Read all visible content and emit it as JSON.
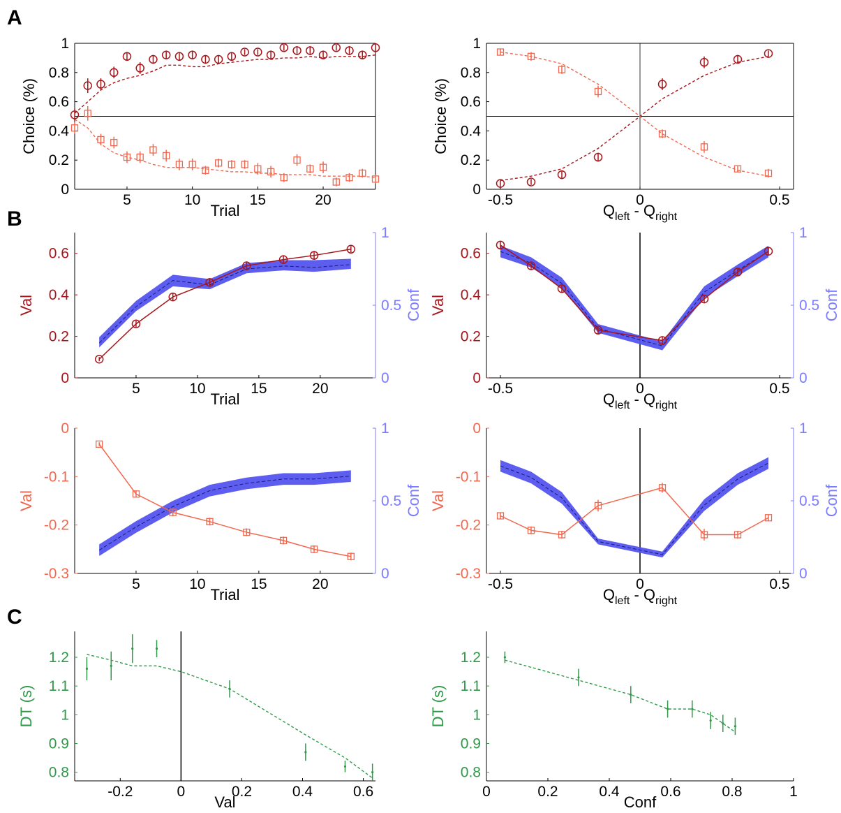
{
  "panel_labels": [
    "A",
    "B",
    "C"
  ],
  "colors": {
    "dark_red": "#a8151b",
    "orange": "#f0684f",
    "blue": "#5a5af0",
    "blue_band": "#5454ee",
    "light_blue_text": "#7b7bff",
    "green": "#2e9a48",
    "axis": "#000000"
  },
  "chart_data": [
    {
      "id": "A-left",
      "panel": "A",
      "type": "scatter",
      "xlabel": "Trial",
      "ylabel": "Choice (%)",
      "xlim": [
        1,
        24
      ],
      "ylim": [
        0,
        1
      ],
      "xticks": [
        "5",
        "10",
        "15",
        "20"
      ],
      "yticks": [
        "0",
        "0.2",
        "0.4",
        "0.6",
        "0.8",
        "1"
      ],
      "ref_lines": [
        {
          "axis": "y",
          "value": 0.5
        }
      ],
      "series": [
        {
          "marker": "circle",
          "color": "dark_red",
          "x": [
            1,
            2,
            3,
            4,
            5,
            6,
            7,
            8,
            9,
            10,
            11,
            12,
            13,
            14,
            15,
            16,
            17,
            18,
            19,
            20,
            21,
            22,
            23,
            24
          ],
          "y": [
            0.51,
            0.71,
            0.72,
            0.8,
            0.91,
            0.83,
            0.89,
            0.92,
            0.91,
            0.92,
            0.89,
            0.89,
            0.91,
            0.94,
            0.94,
            0.92,
            0.97,
            0.95,
            0.95,
            0.92,
            0.97,
            0.95,
            0.92,
            0.97
          ],
          "err": [
            0.04,
            0.05,
            0.04,
            0.04,
            0.03,
            0.04,
            0.03,
            0.03,
            0.03,
            0.03,
            0.03,
            0.03,
            0.03,
            0.02,
            0.02,
            0.03,
            0.02,
            0.03,
            0.03,
            0.03,
            0.02,
            0.03,
            0.03,
            0.02
          ]
        },
        {
          "marker": "square",
          "color": "orange",
          "x": [
            1,
            2,
            3,
            4,
            5,
            6,
            7,
            8,
            9,
            10,
            11,
            12,
            13,
            14,
            15,
            16,
            17,
            18,
            19,
            20,
            21,
            22,
            23,
            24
          ],
          "y": [
            0.42,
            0.52,
            0.34,
            0.32,
            0.22,
            0.22,
            0.27,
            0.23,
            0.17,
            0.17,
            0.13,
            0.18,
            0.17,
            0.17,
            0.14,
            0.12,
            0.08,
            0.2,
            0.14,
            0.15,
            0.05,
            0.08,
            0.11,
            0.07
          ],
          "err": [
            0.04,
            0.05,
            0.04,
            0.04,
            0.04,
            0.04,
            0.04,
            0.04,
            0.04,
            0.04,
            0.03,
            0.03,
            0.03,
            0.03,
            0.04,
            0.04,
            0.03,
            0.04,
            0.03,
            0.04,
            0.03,
            0.03,
            0.03,
            0.03
          ]
        }
      ],
      "lines": [
        {
          "color": "dark_red",
          "x": [
            1,
            2,
            3,
            4,
            5,
            6,
            7,
            8,
            9,
            10,
            11,
            12,
            13,
            14,
            15,
            16,
            17,
            18,
            19,
            20,
            21,
            22,
            23,
            24
          ],
          "y": [
            0.52,
            0.6,
            0.68,
            0.73,
            0.76,
            0.78,
            0.81,
            0.85,
            0.85,
            0.84,
            0.84,
            0.86,
            0.87,
            0.88,
            0.89,
            0.89,
            0.9,
            0.9,
            0.91,
            0.9,
            0.91,
            0.91,
            0.91,
            0.92
          ]
        },
        {
          "color": "orange",
          "x": [
            1,
            2,
            3,
            4,
            5,
            6,
            7,
            8,
            9,
            10,
            11,
            12,
            13,
            14,
            15,
            16,
            17,
            18,
            19,
            20,
            21,
            22,
            23,
            24
          ],
          "y": [
            0.48,
            0.42,
            0.31,
            0.25,
            0.22,
            0.2,
            0.17,
            0.15,
            0.15,
            0.15,
            0.14,
            0.13,
            0.12,
            0.12,
            0.11,
            0.11,
            0.1,
            0.1,
            0.1,
            0.09,
            0.09,
            0.09,
            0.09,
            0.08
          ]
        }
      ]
    },
    {
      "id": "A-right",
      "panel": "A",
      "type": "scatter",
      "xlabel": "Q",
      "xlabel_sub1": "left",
      "xlabel_mid": " - Q",
      "xlabel_sub2": "right",
      "ylabel": "Choice (%)",
      "xlim": [
        -0.55,
        0.55
      ],
      "ylim": [
        0,
        1
      ],
      "xticks": [
        "-0.5",
        "0",
        "0.5"
      ],
      "yticks": [
        "0",
        "0.2",
        "0.4",
        "0.6",
        "0.8",
        "1"
      ],
      "ref_lines": [
        {
          "axis": "y",
          "value": 0.5
        },
        {
          "axis": "x",
          "value": 0
        }
      ],
      "series": [
        {
          "marker": "circle",
          "color": "dark_red",
          "x": [
            -0.5,
            -0.39,
            -0.28,
            -0.15,
            0.08,
            0.23,
            0.35,
            0.46
          ],
          "y": [
            0.04,
            0.05,
            0.1,
            0.22,
            0.72,
            0.87,
            0.89,
            0.93
          ],
          "err": [
            0.02,
            0.02,
            0.03,
            0.03,
            0.04,
            0.04,
            0.03,
            0.02
          ]
        },
        {
          "marker": "square",
          "color": "orange",
          "x": [
            -0.5,
            -0.39,
            -0.28,
            -0.15,
            0.08,
            0.23,
            0.35,
            0.46
          ],
          "y": [
            0.94,
            0.91,
            0.82,
            0.67,
            0.38,
            0.29,
            0.14,
            0.11
          ],
          "err": [
            0.02,
            0.03,
            0.03,
            0.04,
            0.03,
            0.04,
            0.02,
            0.03
          ]
        }
      ],
      "lines": [
        {
          "color": "dark_red",
          "x": [
            -0.5,
            -0.39,
            -0.28,
            -0.15,
            0,
            0.08,
            0.23,
            0.35,
            0.46
          ],
          "y": [
            0.06,
            0.09,
            0.14,
            0.28,
            0.5,
            0.62,
            0.78,
            0.87,
            0.91
          ]
        },
        {
          "color": "orange",
          "x": [
            -0.5,
            -0.39,
            -0.28,
            -0.15,
            0,
            0.08,
            0.23,
            0.35,
            0.46
          ],
          "y": [
            0.94,
            0.91,
            0.86,
            0.72,
            0.5,
            0.38,
            0.22,
            0.13,
            0.09
          ]
        }
      ]
    },
    {
      "id": "B-top-left",
      "panel": "B",
      "type": "line",
      "xlabel": "Trial",
      "ylabel": "Val",
      "ylabel_right": "Conf",
      "xlim": [
        0,
        24.5
      ],
      "ylim": [
        0,
        0.7
      ],
      "ylim_right": [
        0,
        1
      ],
      "xticks": [
        "5",
        "10",
        "15",
        "20"
      ],
      "yticks": [
        "0",
        "0.2",
        "0.4",
        "0.6"
      ],
      "yticks_right": [
        "0",
        "0.5",
        "1"
      ],
      "series": [
        {
          "name": "",
          "marker": "circle",
          "color": "dark_red",
          "x": [
            2,
            5,
            8,
            11,
            14,
            17,
            19.5,
            22.5
          ],
          "y": [
            0.09,
            0.26,
            0.39,
            0.46,
            0.54,
            0.57,
            0.59,
            0.62
          ],
          "err": [
            0.01,
            0.015,
            0.02,
            0.02,
            0.02,
            0.02,
            0.02,
            0.015
          ]
        }
      ],
      "band": {
        "color": "blue_band",
        "x": [
          2,
          5,
          8,
          11,
          14,
          17,
          19.5,
          22.5
        ],
        "mean": [
          0.24,
          0.49,
          0.67,
          0.64,
          0.75,
          0.77,
          0.76,
          0.78
        ],
        "lo": [
          0.21,
          0.46,
          0.63,
          0.61,
          0.72,
          0.74,
          0.73,
          0.75
        ],
        "hi": [
          0.28,
          0.53,
          0.71,
          0.68,
          0.79,
          0.81,
          0.81,
          0.82
        ]
      }
    },
    {
      "id": "B-top-right",
      "panel": "B",
      "type": "line",
      "xlabel": "Q",
      "xlabel_sub1": "left",
      "xlabel_mid": " - Q",
      "xlabel_sub2": "right",
      "ylabel": "Val",
      "ylabel_right": "Conf",
      "xlim": [
        -0.55,
        0.55
      ],
      "ylim": [
        0,
        0.7
      ],
      "ylim_right": [
        0,
        1
      ],
      "xticks": [
        "-0.5",
        "0",
        "0.5"
      ],
      "yticks": [
        "0",
        "0.2",
        "0.4",
        "0.6"
      ],
      "yticks_right": [
        "0",
        "0.5",
        "1"
      ],
      "ref_lines": [
        {
          "axis": "x",
          "value": 0
        }
      ],
      "series": [
        {
          "marker": "circle",
          "color": "dark_red",
          "x": [
            -0.5,
            -0.39,
            -0.28,
            -0.15,
            0.08,
            0.23,
            0.35,
            0.46
          ],
          "y": [
            0.64,
            0.54,
            0.43,
            0.23,
            0.18,
            0.38,
            0.51,
            0.61
          ],
          "err": [
            0.02,
            0.02,
            0.02,
            0.02,
            0.02,
            0.02,
            0.02,
            0.02
          ]
        }
      ],
      "band": {
        "color": "blue_band",
        "x": [
          -0.5,
          -0.39,
          -0.28,
          -0.15,
          0.08,
          0.23,
          0.35,
          0.46
        ],
        "mean": [
          0.87,
          0.79,
          0.65,
          0.34,
          0.22,
          0.59,
          0.74,
          0.87
        ],
        "lo": [
          0.83,
          0.76,
          0.62,
          0.31,
          0.19,
          0.55,
          0.7,
          0.83
        ],
        "hi": [
          0.91,
          0.83,
          0.69,
          0.37,
          0.25,
          0.63,
          0.78,
          0.91
        ]
      }
    },
    {
      "id": "B-bottom-left",
      "panel": "B",
      "type": "line",
      "xlabel": "Trial",
      "ylabel": "Val",
      "ylabel_right": "Conf",
      "xlim": [
        0,
        24.5
      ],
      "ylim": [
        -0.3,
        0
      ],
      "ylim_right": [
        0,
        1
      ],
      "xticks": [
        "5",
        "10",
        "15",
        "20"
      ],
      "yticks": [
        "-0.3",
        "-0.2",
        "-0.1",
        "0"
      ],
      "yticks_right": [
        "0",
        "0.5",
        "1"
      ],
      "series": [
        {
          "marker": "square",
          "color": "orange",
          "x": [
            2,
            5,
            8,
            11,
            14,
            17,
            19.5,
            22.5
          ],
          "y": [
            -0.033,
            -0.136,
            -0.174,
            -0.193,
            -0.215,
            -0.232,
            -0.25,
            -0.265
          ],
          "err": [
            0.004,
            0.007,
            0.008,
            0.008,
            0.008,
            0.008,
            0.008,
            0.008
          ]
        }
      ],
      "band": {
        "color": "blue_band",
        "x": [
          2,
          5,
          8,
          11,
          14,
          17,
          19.5,
          22.5
        ],
        "mean": [
          0.16,
          0.32,
          0.46,
          0.57,
          0.62,
          0.65,
          0.65,
          0.67
        ],
        "lo": [
          0.12,
          0.28,
          0.42,
          0.53,
          0.58,
          0.61,
          0.61,
          0.63
        ],
        "hi": [
          0.2,
          0.36,
          0.5,
          0.61,
          0.66,
          0.69,
          0.69,
          0.71
        ]
      }
    },
    {
      "id": "B-bottom-right",
      "panel": "B",
      "type": "line",
      "xlabel": "Q",
      "xlabel_sub1": "left",
      "xlabel_mid": " - Q",
      "xlabel_sub2": "right",
      "ylabel": "Val",
      "ylabel_right": "Conf",
      "xlim": [
        -0.55,
        0.55
      ],
      "ylim": [
        -0.3,
        0
      ],
      "ylim_right": [
        0,
        1
      ],
      "xticks": [
        "-0.5",
        "0",
        "0.5"
      ],
      "yticks": [
        "-0.3",
        "-0.2",
        "-0.1",
        "0"
      ],
      "yticks_right": [
        "0",
        "0.5",
        "1"
      ],
      "ref_lines": [
        {
          "axis": "x",
          "value": 0
        }
      ],
      "series": [
        {
          "marker": "square",
          "color": "orange",
          "x": [
            -0.5,
            -0.39,
            -0.28,
            -0.15,
            0.08,
            0.23,
            0.35,
            0.46
          ],
          "y": [
            -0.181,
            -0.211,
            -0.22,
            -0.16,
            -0.123,
            -0.22,
            -0.22,
            -0.185
          ],
          "err": [
            0.007,
            0.008,
            0.008,
            0.012,
            0.01,
            0.012,
            0.008,
            0.007
          ]
        }
      ],
      "band": {
        "color": "blue_band",
        "x": [
          -0.5,
          -0.39,
          -0.28,
          -0.15,
          0.08,
          0.23,
          0.35,
          0.46
        ],
        "mean": [
          0.74,
          0.66,
          0.52,
          0.22,
          0.13,
          0.47,
          0.65,
          0.76
        ],
        "lo": [
          0.7,
          0.62,
          0.48,
          0.2,
          0.11,
          0.43,
          0.61,
          0.72
        ],
        "hi": [
          0.78,
          0.7,
          0.56,
          0.24,
          0.15,
          0.51,
          0.69,
          0.8
        ]
      }
    },
    {
      "id": "C-left",
      "panel": "C",
      "type": "scatter",
      "xlabel": "Val",
      "ylabel": "DT (s)",
      "xlim": [
        -0.35,
        0.64
      ],
      "ylim": [
        0.77,
        1.29
      ],
      "xticks": [
        "-0.2",
        "0",
        "0.2",
        "0.4",
        "0.6"
      ],
      "yticks": [
        "0.8",
        "0.9",
        "1",
        "1.1",
        "1.2"
      ],
      "ref_lines": [
        {
          "axis": "x",
          "value": 0
        }
      ],
      "series": [
        {
          "marker": "dot",
          "color": "green",
          "x": [
            -0.31,
            -0.23,
            -0.16,
            -0.08,
            0.16,
            0.41,
            0.54,
            0.63
          ],
          "y": [
            1.16,
            1.17,
            1.23,
            1.23,
            1.09,
            0.87,
            0.82,
            0.8
          ],
          "err": [
            0.04,
            0.05,
            0.05,
            0.03,
            0.03,
            0.03,
            0.02,
            0.03
          ]
        }
      ],
      "lines": [
        {
          "color": "green",
          "x": [
            -0.31,
            -0.23,
            -0.16,
            -0.08,
            0,
            0.16,
            0.41,
            0.54,
            0.63
          ],
          "y": [
            1.21,
            1.19,
            1.17,
            1.17,
            1.15,
            1.09,
            0.93,
            0.85,
            0.78
          ]
        }
      ]
    },
    {
      "id": "C-right",
      "panel": "C",
      "type": "scatter",
      "xlabel": "Conf",
      "ylabel": "DT (s)",
      "xlim": [
        0,
        1
      ],
      "ylim": [
        0.77,
        1.29
      ],
      "xticks": [
        "0",
        "0.2",
        "0.4",
        "0.6",
        "0.8",
        "1"
      ],
      "yticks": [
        "0.8",
        "0.9",
        "1",
        "1.1",
        "1.2"
      ],
      "series": [
        {
          "marker": "dot",
          "color": "green",
          "x": [
            0.06,
            0.3,
            0.47,
            0.59,
            0.67,
            0.73,
            0.77,
            0.81
          ],
          "y": [
            1.2,
            1.13,
            1.07,
            1.02,
            1.02,
            0.98,
            0.97,
            0.96
          ],
          "err": [
            0.02,
            0.03,
            0.03,
            0.03,
            0.03,
            0.03,
            0.03,
            0.03
          ]
        }
      ],
      "lines": [
        {
          "color": "green",
          "x": [
            0.06,
            0.3,
            0.47,
            0.59,
            0.67,
            0.73,
            0.77,
            0.81
          ],
          "y": [
            1.19,
            1.12,
            1.07,
            1.02,
            1.02,
            1.0,
            0.97,
            0.94
          ]
        }
      ]
    }
  ]
}
